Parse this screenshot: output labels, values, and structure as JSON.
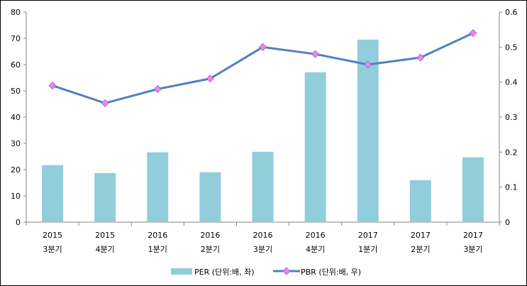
{
  "chart_data": {
    "type": "bar+line",
    "categories": [
      [
        "2015",
        "3분기"
      ],
      [
        "2015",
        "4분기"
      ],
      [
        "2016",
        "1분기"
      ],
      [
        "2016",
        "2분기"
      ],
      [
        "2016",
        "3분기"
      ],
      [
        "2016",
        "4분기"
      ],
      [
        "2017",
        "1분기"
      ],
      [
        "2017",
        "2분기"
      ],
      [
        "2017",
        "3분기"
      ]
    ],
    "series": [
      {
        "name": "PER (단위:배, 좌)",
        "type": "bar",
        "axis": "left",
        "color": "#92CDDC",
        "values": [
          21.7,
          18.7,
          26.6,
          19.0,
          26.8,
          57.1,
          69.5,
          16.0,
          24.7
        ]
      },
      {
        "name": "PBR (단위:배, 우)",
        "type": "line",
        "axis": "right",
        "color": "#4F81BD",
        "marker_color": "#FF80E0",
        "values": [
          0.39,
          0.34,
          0.38,
          0.41,
          0.5,
          0.48,
          0.45,
          0.47,
          0.54
        ]
      }
    ],
    "left_axis": {
      "range": [
        0,
        80
      ],
      "ticks": [
        "0",
        "10",
        "20",
        "30",
        "40",
        "50",
        "60",
        "70",
        "80"
      ]
    },
    "right_axis": {
      "range": [
        0,
        0.6
      ],
      "ticks": [
        "0",
        "0.1",
        "0.2",
        "0.3",
        "0.4",
        "0.5",
        "0.6"
      ]
    },
    "grid": false,
    "legend": "bottom"
  }
}
